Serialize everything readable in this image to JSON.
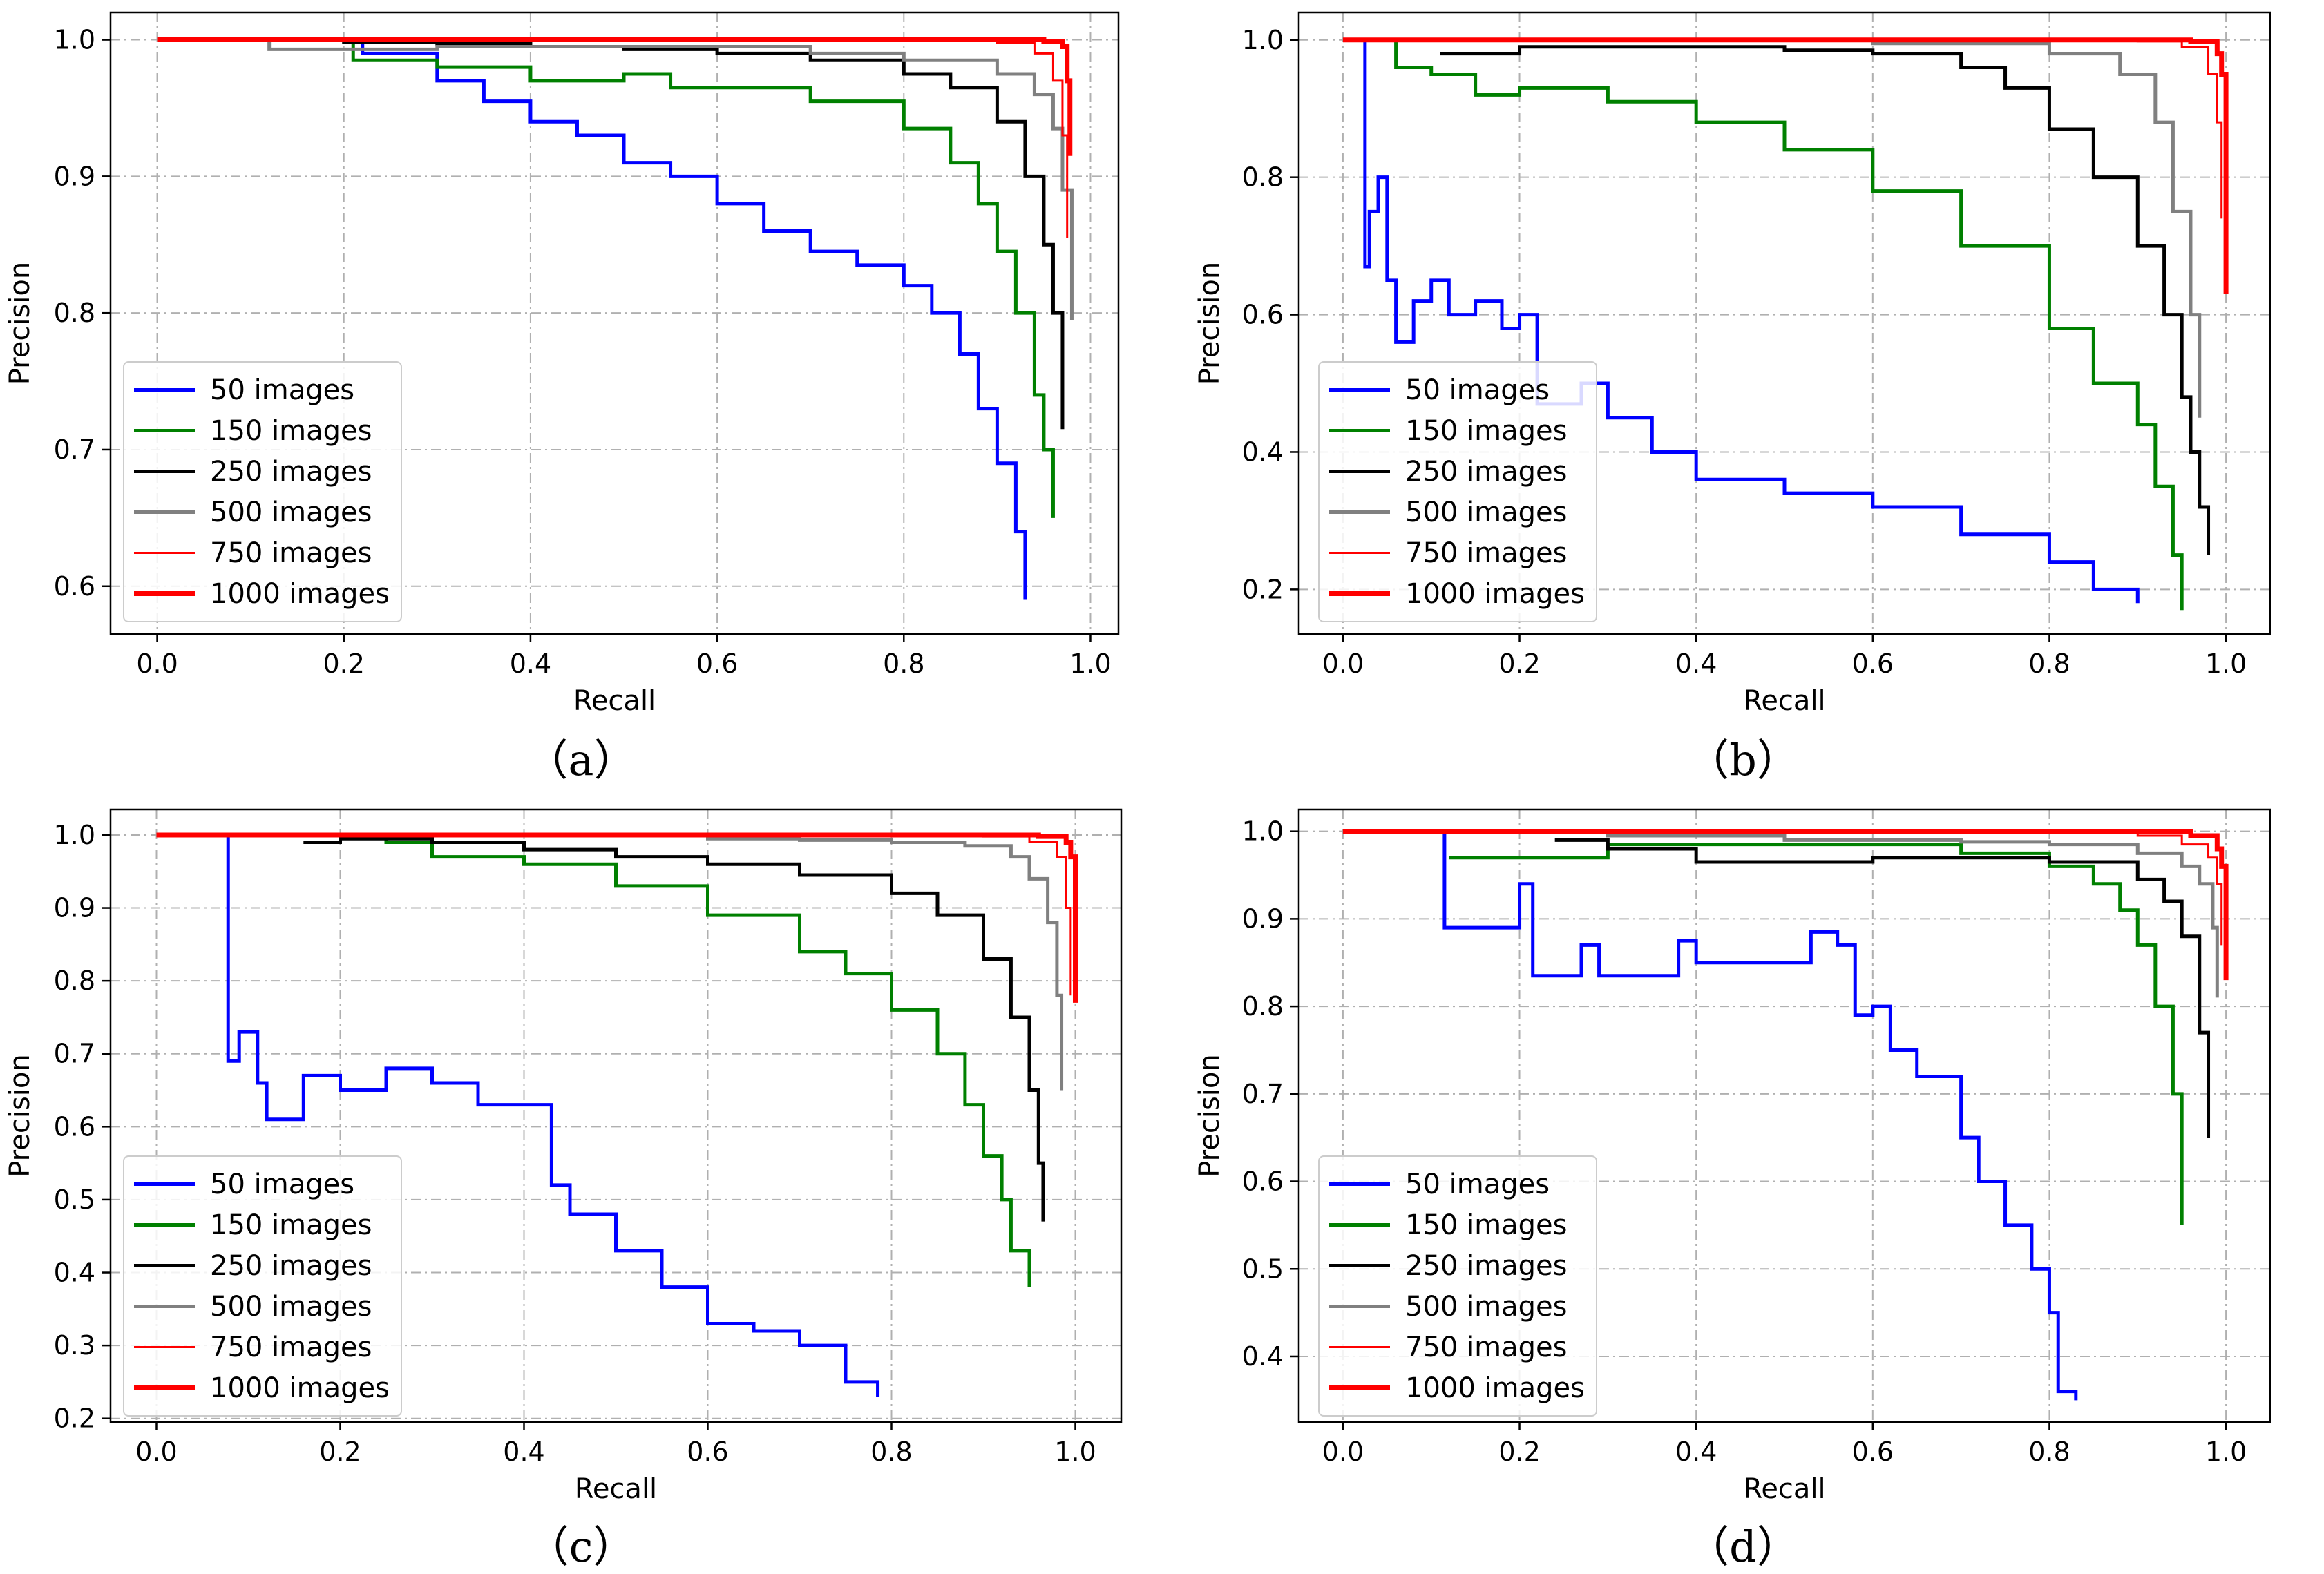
{
  "chart_data": [
    {
      "panel": "a",
      "type": "line",
      "caption": "（a）",
      "xlabel": "Recall",
      "ylabel": "Precision",
      "xlim": [
        -0.05,
        1.03
      ],
      "ylim": [
        0.565,
        1.02
      ],
      "xticks": [
        "0.0",
        "0.2",
        "0.4",
        "0.6",
        "0.8",
        "1.0"
      ],
      "yticks": [
        "0.6",
        "0.7",
        "0.8",
        "0.9",
        "1.0"
      ],
      "legend_position": "lower-left",
      "series": [
        {
          "name": "50 images",
          "color": "#0000ff",
          "x": [
            0.0,
            0.2,
            0.22,
            0.3,
            0.35,
            0.4,
            0.45,
            0.5,
            0.55,
            0.6,
            0.65,
            0.7,
            0.75,
            0.8,
            0.83,
            0.86,
            0.88,
            0.9,
            0.92,
            0.93
          ],
          "y": [
            1.0,
            1.0,
            0.99,
            0.97,
            0.955,
            0.94,
            0.93,
            0.91,
            0.9,
            0.88,
            0.86,
            0.845,
            0.835,
            0.82,
            0.8,
            0.77,
            0.73,
            0.69,
            0.64,
            0.59
          ]
        },
        {
          "name": "150 images",
          "color": "#008000",
          "x": [
            0.0,
            0.21,
            0.3,
            0.4,
            0.5,
            0.55,
            0.6,
            0.7,
            0.8,
            0.85,
            0.88,
            0.9,
            0.92,
            0.94,
            0.95,
            0.96
          ],
          "y": [
            1.0,
            0.985,
            0.98,
            0.97,
            0.975,
            0.965,
            0.965,
            0.955,
            0.935,
            0.91,
            0.88,
            0.845,
            0.8,
            0.74,
            0.7,
            0.65
          ]
        },
        {
          "name": "250 images",
          "color": "#000000",
          "x": [
            0.0,
            0.2,
            0.3,
            0.4,
            0.5,
            0.6,
            0.7,
            0.8,
            0.85,
            0.9,
            0.93,
            0.95,
            0.96,
            0.97
          ],
          "y": [
            1.0,
            0.998,
            0.997,
            0.995,
            0.993,
            0.99,
            0.985,
            0.975,
            0.965,
            0.94,
            0.9,
            0.85,
            0.8,
            0.715
          ]
        },
        {
          "name": "500 images",
          "color": "#808080",
          "x": [
            0.0,
            0.06,
            0.12,
            0.3,
            0.5,
            0.7,
            0.8,
            0.9,
            0.94,
            0.96,
            0.97,
            0.98
          ],
          "y": [
            1.0,
            1.0,
            0.993,
            0.995,
            0.995,
            0.99,
            0.985,
            0.975,
            0.96,
            0.935,
            0.89,
            0.795
          ]
        },
        {
          "name": "750 images",
          "color": "#ff0000",
          "x": [
            0.0,
            0.8,
            0.9,
            0.94,
            0.96,
            0.97,
            0.975
          ],
          "y": [
            1.0,
            1.0,
            0.998,
            0.99,
            0.97,
            0.93,
            0.855
          ]
        },
        {
          "name": "1000 images",
          "color": "#ff0000",
          "x": [
            0.0,
            0.9,
            0.95,
            0.97,
            0.975,
            0.978
          ],
          "y": [
            1.0,
            1.0,
            0.999,
            0.995,
            0.97,
            0.915
          ]
        }
      ]
    },
    {
      "panel": "b",
      "type": "line",
      "caption": "（b）",
      "xlabel": "Recall",
      "ylabel": "Precision",
      "xlim": [
        -0.05,
        1.05
      ],
      "ylim": [
        0.135,
        1.04
      ],
      "xticks": [
        "0.0",
        "0.2",
        "0.4",
        "0.6",
        "0.8",
        "1.0"
      ],
      "yticks": [
        "0.2",
        "0.4",
        "0.6",
        "0.8",
        "1.0"
      ],
      "legend_position": "lower-left",
      "series": [
        {
          "name": "50 images",
          "color": "#0000ff",
          "x": [
            0.02,
            0.025,
            0.03,
            0.04,
            0.05,
            0.06,
            0.08,
            0.1,
            0.12,
            0.15,
            0.18,
            0.2,
            0.22,
            0.27,
            0.3,
            0.35,
            0.4,
            0.5,
            0.6,
            0.7,
            0.8,
            0.85,
            0.9
          ],
          "y": [
            1.0,
            0.67,
            0.75,
            0.8,
            0.65,
            0.56,
            0.62,
            0.65,
            0.6,
            0.62,
            0.58,
            0.6,
            0.47,
            0.5,
            0.45,
            0.4,
            0.36,
            0.34,
            0.32,
            0.28,
            0.24,
            0.2,
            0.18
          ]
        },
        {
          "name": "150 images",
          "color": "#008000",
          "x": [
            0.05,
            0.06,
            0.1,
            0.15,
            0.2,
            0.3,
            0.4,
            0.5,
            0.6,
            0.7,
            0.8,
            0.85,
            0.9,
            0.92,
            0.94,
            0.95
          ],
          "y": [
            1.0,
            0.96,
            0.95,
            0.92,
            0.93,
            0.91,
            0.88,
            0.84,
            0.78,
            0.7,
            0.58,
            0.5,
            0.44,
            0.35,
            0.25,
            0.17
          ]
        },
        {
          "name": "250 images",
          "color": "#000000",
          "x": [
            0.11,
            0.2,
            0.3,
            0.4,
            0.5,
            0.6,
            0.7,
            0.75,
            0.8,
            0.85,
            0.9,
            0.93,
            0.95,
            0.96,
            0.97,
            0.98
          ],
          "y": [
            0.98,
            0.99,
            0.99,
            0.99,
            0.985,
            0.98,
            0.96,
            0.93,
            0.87,
            0.8,
            0.7,
            0.6,
            0.48,
            0.4,
            0.32,
            0.25
          ]
        },
        {
          "name": "500 images",
          "color": "#808080",
          "x": [
            0.0,
            0.4,
            0.6,
            0.8,
            0.88,
            0.92,
            0.94,
            0.96,
            0.97
          ],
          "y": [
            1.0,
            1.0,
            0.995,
            0.98,
            0.95,
            0.88,
            0.75,
            0.6,
            0.45
          ]
        },
        {
          "name": "750 images",
          "color": "#ff0000",
          "x": [
            0.0,
            0.8,
            0.9,
            0.95,
            0.98,
            0.99,
            0.995
          ],
          "y": [
            1.0,
            1.0,
            0.998,
            0.99,
            0.95,
            0.88,
            0.74
          ]
        },
        {
          "name": "1000 images",
          "color": "#ff0000",
          "x": [
            0.0,
            0.9,
            0.96,
            0.99,
            0.995,
            1.0
          ],
          "y": [
            1.0,
            1.0,
            0.998,
            0.98,
            0.95,
            0.63
          ]
        }
      ]
    },
    {
      "panel": "c",
      "type": "line",
      "caption": "（c）",
      "xlabel": "Recall",
      "ylabel": "Precision",
      "xlim": [
        -0.05,
        1.05
      ],
      "ylim": [
        0.195,
        1.035
      ],
      "xticks": [
        "0.0",
        "0.2",
        "0.4",
        "0.6",
        "0.8",
        "1.0"
      ],
      "yticks": [
        "0.2",
        "0.3",
        "0.4",
        "0.5",
        "0.6",
        "0.7",
        "0.8",
        "0.9",
        "1.0"
      ],
      "legend_position": "lower-left",
      "series": [
        {
          "name": "50 images",
          "color": "#0000ff",
          "x": [
            0.075,
            0.078,
            0.09,
            0.11,
            0.12,
            0.16,
            0.2,
            0.25,
            0.3,
            0.35,
            0.4,
            0.43,
            0.45,
            0.5,
            0.55,
            0.6,
            0.65,
            0.7,
            0.75,
            0.785
          ],
          "y": [
            1.0,
            0.69,
            0.73,
            0.66,
            0.61,
            0.67,
            0.65,
            0.68,
            0.66,
            0.63,
            0.63,
            0.52,
            0.48,
            0.43,
            0.38,
            0.33,
            0.32,
            0.3,
            0.25,
            0.23
          ]
        },
        {
          "name": "150 images",
          "color": "#008000",
          "x": [
            0.17,
            0.25,
            0.3,
            0.4,
            0.5,
            0.6,
            0.7,
            0.75,
            0.8,
            0.85,
            0.88,
            0.9,
            0.92,
            0.93,
            0.95
          ],
          "y": [
            1.0,
            0.99,
            0.97,
            0.96,
            0.93,
            0.89,
            0.84,
            0.81,
            0.76,
            0.7,
            0.63,
            0.56,
            0.5,
            0.43,
            0.38
          ]
        },
        {
          "name": "250 images",
          "color": "#000000",
          "x": [
            0.16,
            0.2,
            0.3,
            0.4,
            0.5,
            0.6,
            0.7,
            0.8,
            0.85,
            0.9,
            0.93,
            0.95,
            0.96,
            0.965
          ],
          "y": [
            0.99,
            0.995,
            0.99,
            0.98,
            0.97,
            0.96,
            0.945,
            0.92,
            0.89,
            0.83,
            0.75,
            0.65,
            0.55,
            0.47
          ]
        },
        {
          "name": "500 images",
          "color": "#808080",
          "x": [
            0.0,
            0.5,
            0.6,
            0.7,
            0.8,
            0.88,
            0.93,
            0.95,
            0.97,
            0.98,
            0.985
          ],
          "y": [
            1.0,
            1.0,
            0.995,
            0.993,
            0.99,
            0.985,
            0.97,
            0.94,
            0.88,
            0.78,
            0.65
          ]
        },
        {
          "name": "750 images",
          "color": "#ff0000",
          "x": [
            0.0,
            0.8,
            0.9,
            0.95,
            0.98,
            0.99,
            0.995
          ],
          "y": [
            1.0,
            1.0,
            0.998,
            0.99,
            0.97,
            0.9,
            0.78
          ]
        },
        {
          "name": "1000 images",
          "color": "#ff0000",
          "x": [
            0.0,
            0.9,
            0.96,
            0.99,
            0.995,
            1.0
          ],
          "y": [
            1.0,
            1.0,
            0.998,
            0.99,
            0.97,
            0.77
          ]
        }
      ]
    },
    {
      "panel": "d",
      "type": "line",
      "caption": "（d）",
      "xlabel": "Recall",
      "ylabel": "Precision",
      "xlim": [
        -0.05,
        1.05
      ],
      "ylim": [
        0.325,
        1.025
      ],
      "xticks": [
        "0.0",
        "0.2",
        "0.4",
        "0.6",
        "0.8",
        "1.0"
      ],
      "yticks": [
        "0.4",
        "0.5",
        "0.6",
        "0.7",
        "0.8",
        "0.9",
        "1.0"
      ],
      "legend_position": "lower-left",
      "series": [
        {
          "name": "50 images",
          "color": "#0000ff",
          "x": [
            0.11,
            0.115,
            0.2,
            0.215,
            0.27,
            0.29,
            0.38,
            0.4,
            0.53,
            0.56,
            0.58,
            0.6,
            0.62,
            0.65,
            0.7,
            0.72,
            0.75,
            0.78,
            0.8,
            0.81,
            0.83
          ],
          "y": [
            1.0,
            0.89,
            0.94,
            0.835,
            0.87,
            0.835,
            0.875,
            0.85,
            0.885,
            0.87,
            0.79,
            0.8,
            0.75,
            0.72,
            0.65,
            0.6,
            0.55,
            0.5,
            0.45,
            0.36,
            0.35
          ]
        },
        {
          "name": "150 images",
          "color": "#008000",
          "x": [
            0.12,
            0.3,
            0.5,
            0.7,
            0.8,
            0.85,
            0.88,
            0.9,
            0.92,
            0.94,
            0.95
          ],
          "y": [
            0.97,
            0.985,
            0.985,
            0.975,
            0.96,
            0.94,
            0.91,
            0.87,
            0.8,
            0.7,
            0.55
          ]
        },
        {
          "name": "250 images",
          "color": "#000000",
          "x": [
            0.24,
            0.3,
            0.4,
            0.5,
            0.6,
            0.7,
            0.8,
            0.9,
            0.93,
            0.95,
            0.97,
            0.98
          ],
          "y": [
            0.99,
            0.98,
            0.965,
            0.965,
            0.97,
            0.97,
            0.965,
            0.945,
            0.92,
            0.88,
            0.77,
            0.65
          ]
        },
        {
          "name": "500 images",
          "color": "#808080",
          "x": [
            0.0,
            0.3,
            0.5,
            0.7,
            0.8,
            0.9,
            0.95,
            0.97,
            0.985,
            0.99
          ],
          "y": [
            1.0,
            0.995,
            0.99,
            0.988,
            0.985,
            0.975,
            0.96,
            0.94,
            0.89,
            0.81
          ]
        },
        {
          "name": "750 images",
          "color": "#ff0000",
          "x": [
            0.0,
            0.8,
            0.9,
            0.95,
            0.98,
            0.99,
            0.995
          ],
          "y": [
            1.0,
            1.0,
            0.995,
            0.985,
            0.97,
            0.94,
            0.87
          ]
        },
        {
          "name": "1000 images",
          "color": "#ff0000",
          "x": [
            0.0,
            0.9,
            0.96,
            0.99,
            0.995,
            1.0
          ],
          "y": [
            1.0,
            1.0,
            0.995,
            0.98,
            0.96,
            0.83
          ]
        }
      ]
    }
  ]
}
